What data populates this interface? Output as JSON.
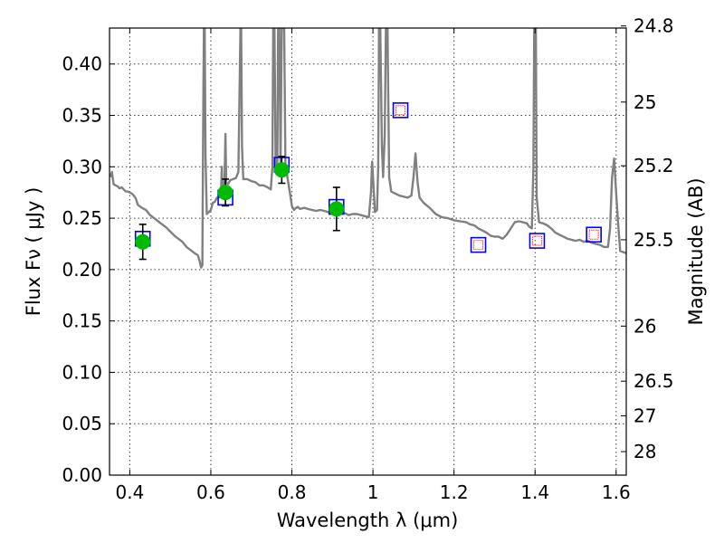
{
  "chart_data": {
    "type": "line",
    "xlabel": "Wavelength  λ (μm)",
    "ylabel": "Flux  Fν  ( μJy )",
    "ylabel_right": "Magnitude (AB)",
    "xlim": [
      0.35,
      1.625
    ],
    "ylim": [
      0.0,
      0.435
    ],
    "grid": true,
    "x_ticks": [
      0.4,
      0.6,
      0.8,
      1.0,
      1.2,
      1.4,
      1.6
    ],
    "x_tick_labels": [
      "0.4",
      "0.6",
      "0.8",
      "1",
      "1.2",
      "1.4",
      "1.6"
    ],
    "y_ticks": [
      0.0,
      0.05,
      0.1,
      0.15,
      0.2,
      0.25,
      0.3,
      0.35,
      0.4
    ],
    "y_tick_labels": [
      "0.00",
      "0.05",
      "0.10",
      "0.15",
      "0.20",
      "0.25",
      "0.30",
      "0.35",
      "0.40"
    ],
    "right_ticks": [
      {
        "flux": 0.437,
        "label": "24.8"
      },
      {
        "flux": 0.363,
        "label": "25"
      },
      {
        "flux": 0.301,
        "label": "25.2"
      },
      {
        "flux": 0.229,
        "label": "25.5"
      },
      {
        "flux": 0.145,
        "label": "26"
      },
      {
        "flux": 0.0914,
        "label": "26.5"
      },
      {
        "flux": 0.0577,
        "label": "27"
      },
      {
        "flux": 0.0229,
        "label": "28"
      }
    ],
    "series": [
      {
        "kind": "model-spectrum",
        "color": "#808080",
        "points": [
          [
            0.352,
            0.29
          ],
          [
            0.356,
            0.295
          ],
          [
            0.36,
            0.283
          ],
          [
            0.365,
            0.282
          ],
          [
            0.37,
            0.281
          ],
          [
            0.375,
            0.279
          ],
          [
            0.38,
            0.28
          ],
          [
            0.385,
            0.278
          ],
          [
            0.39,
            0.276
          ],
          [
            0.395,
            0.276
          ],
          [
            0.4,
            0.275
          ],
          [
            0.405,
            0.274
          ],
          [
            0.41,
            0.272
          ],
          [
            0.415,
            0.269
          ],
          [
            0.42,
            0.263
          ],
          [
            0.43,
            0.26
          ],
          [
            0.44,
            0.258
          ],
          [
            0.45,
            0.253
          ],
          [
            0.46,
            0.25
          ],
          [
            0.47,
            0.247
          ],
          [
            0.48,
            0.244
          ],
          [
            0.49,
            0.241
          ],
          [
            0.5,
            0.237
          ],
          [
            0.51,
            0.233
          ],
          [
            0.52,
            0.23
          ],
          [
            0.53,
            0.227
          ],
          [
            0.54,
            0.222
          ],
          [
            0.55,
            0.219
          ],
          [
            0.56,
            0.216
          ],
          [
            0.568,
            0.214
          ],
          [
            0.572,
            0.209
          ],
          [
            0.576,
            0.202
          ],
          [
            0.579,
            0.204
          ],
          [
            0.581,
            0.34
          ],
          [
            0.583,
            0.435
          ],
          [
            0.585,
            0.435
          ],
          [
            0.587,
            0.31
          ],
          [
            0.59,
            0.254
          ],
          [
            0.595,
            0.256
          ],
          [
            0.6,
            0.258
          ],
          [
            0.605,
            0.265
          ],
          [
            0.61,
            0.266
          ],
          [
            0.615,
            0.27
          ],
          [
            0.62,
            0.27
          ],
          [
            0.625,
            0.275
          ],
          [
            0.627,
            0.3
          ],
          [
            0.628,
            0.28
          ],
          [
            0.632,
            0.276
          ],
          [
            0.634,
            0.29
          ],
          [
            0.636,
            0.332
          ],
          [
            0.638,
            0.285
          ],
          [
            0.642,
            0.283
          ],
          [
            0.648,
            0.287
          ],
          [
            0.655,
            0.288
          ],
          [
            0.662,
            0.289
          ],
          [
            0.668,
            0.295
          ],
          [
            0.671,
            0.38
          ],
          [
            0.673,
            0.435
          ],
          [
            0.675,
            0.435
          ],
          [
            0.677,
            0.32
          ],
          [
            0.68,
            0.288
          ],
          [
            0.69,
            0.288
          ],
          [
            0.7,
            0.286
          ],
          [
            0.71,
            0.285
          ],
          [
            0.72,
            0.282
          ],
          [
            0.73,
            0.282
          ],
          [
            0.74,
            0.28
          ],
          [
            0.748,
            0.278
          ],
          [
            0.752,
            0.3
          ],
          [
            0.754,
            0.435
          ],
          [
            0.757,
            0.435
          ],
          [
            0.76,
            0.3
          ],
          [
            0.764,
            0.296
          ],
          [
            0.766,
            0.435
          ],
          [
            0.769,
            0.435
          ],
          [
            0.772,
            0.3
          ],
          [
            0.775,
            0.435
          ],
          [
            0.778,
            0.435
          ],
          [
            0.781,
            0.435
          ],
          [
            0.784,
            0.3
          ],
          [
            0.788,
            0.292
          ],
          [
            0.795,
            0.275
          ],
          [
            0.8,
            0.262
          ],
          [
            0.805,
            0.258
          ],
          [
            0.81,
            0.26
          ],
          [
            0.815,
            0.261
          ],
          [
            0.82,
            0.259
          ],
          [
            0.83,
            0.26
          ],
          [
            0.84,
            0.259
          ],
          [
            0.85,
            0.258
          ],
          [
            0.86,
            0.257
          ],
          [
            0.87,
            0.258
          ],
          [
            0.88,
            0.257
          ],
          [
            0.89,
            0.256
          ],
          [
            0.9,
            0.257
          ],
          [
            0.91,
            0.256
          ],
          [
            0.92,
            0.254
          ],
          [
            0.93,
            0.255
          ],
          [
            0.94,
            0.253
          ],
          [
            0.95,
            0.254
          ],
          [
            0.96,
            0.254
          ],
          [
            0.97,
            0.253
          ],
          [
            0.98,
            0.252
          ],
          [
            0.99,
            0.251
          ],
          [
            0.995,
            0.275
          ],
          [
            0.998,
            0.305
          ],
          [
            1.001,
            0.285
          ],
          [
            1.005,
            0.256
          ],
          [
            1.01,
            0.258
          ],
          [
            1.013,
            0.3
          ],
          [
            1.015,
            0.435
          ],
          [
            1.018,
            0.435
          ],
          [
            1.022,
            0.32
          ],
          [
            1.025,
            0.29
          ],
          [
            1.029,
            0.33
          ],
          [
            1.032,
            0.435
          ],
          [
            1.036,
            0.435
          ],
          [
            1.04,
            0.29
          ],
          [
            1.045,
            0.276
          ],
          [
            1.055,
            0.274
          ],
          [
            1.065,
            0.272
          ],
          [
            1.075,
            0.271
          ],
          [
            1.085,
            0.27
          ],
          [
            1.095,
            0.272
          ],
          [
            1.1,
            0.29
          ],
          [
            1.105,
            0.313
          ],
          [
            1.11,
            0.285
          ],
          [
            1.115,
            0.27
          ],
          [
            1.125,
            0.265
          ],
          [
            1.14,
            0.26
          ],
          [
            1.155,
            0.254
          ],
          [
            1.17,
            0.251
          ],
          [
            1.185,
            0.25
          ],
          [
            1.2,
            0.248
          ],
          [
            1.215,
            0.247
          ],
          [
            1.23,
            0.246
          ],
          [
            1.24,
            0.244
          ],
          [
            1.25,
            0.243
          ],
          [
            1.26,
            0.24
          ],
          [
            1.27,
            0.238
          ],
          [
            1.28,
            0.236
          ],
          [
            1.29,
            0.233
          ],
          [
            1.3,
            0.232
          ],
          [
            1.31,
            0.232
          ],
          [
            1.32,
            0.23
          ],
          [
            1.33,
            0.234
          ],
          [
            1.34,
            0.24
          ],
          [
            1.35,
            0.246
          ],
          [
            1.36,
            0.247
          ],
          [
            1.37,
            0.246
          ],
          [
            1.38,
            0.245
          ],
          [
            1.385,
            0.242
          ],
          [
            1.392,
            0.24
          ],
          [
            1.396,
            0.3
          ],
          [
            1.398,
            0.435
          ],
          [
            1.402,
            0.435
          ],
          [
            1.404,
            0.27
          ],
          [
            1.41,
            0.246
          ],
          [
            1.42,
            0.245
          ],
          [
            1.43,
            0.243
          ],
          [
            1.44,
            0.24
          ],
          [
            1.45,
            0.236
          ],
          [
            1.46,
            0.234
          ],
          [
            1.47,
            0.232
          ],
          [
            1.48,
            0.23
          ],
          [
            1.49,
            0.229
          ],
          [
            1.5,
            0.228
          ],
          [
            1.51,
            0.229
          ],
          [
            1.52,
            0.227
          ],
          [
            1.53,
            0.228
          ],
          [
            1.54,
            0.226
          ],
          [
            1.55,
            0.225
          ],
          [
            1.56,
            0.224
          ],
          [
            1.57,
            0.222
          ],
          [
            1.58,
            0.222
          ],
          [
            1.585,
            0.24
          ],
          [
            1.59,
            0.29
          ],
          [
            1.595,
            0.308
          ],
          [
            1.6,
            0.275
          ],
          [
            1.605,
            0.245
          ],
          [
            1.61,
            0.218
          ],
          [
            1.625,
            0.216
          ]
        ]
      },
      {
        "kind": "observed-photometry",
        "marker": "filled-circle",
        "color": "#00bb00",
        "x": [
          0.432,
          0.636,
          0.775,
          0.91
        ],
        "y": [
          0.227,
          0.275,
          0.297,
          0.259
        ],
        "yerr": [
          0.017,
          0.013,
          0.013,
          0.021
        ]
      },
      {
        "kind": "model-band-flux",
        "marker": "open-square",
        "color": "#0000ff",
        "x": [
          0.432,
          0.636,
          0.775,
          0.91,
          1.068,
          1.26,
          1.405,
          1.545
        ],
        "y": [
          0.23,
          0.27,
          0.302,
          0.261,
          0.355,
          0.224,
          0.228,
          0.234
        ]
      },
      {
        "kind": "model-band-flux-inner",
        "marker": "dotted-open-square",
        "color": "#ff0000",
        "x": [
          1.068,
          1.26,
          1.405,
          1.545
        ],
        "y": [
          0.355,
          0.224,
          0.228,
          0.234
        ]
      }
    ]
  }
}
